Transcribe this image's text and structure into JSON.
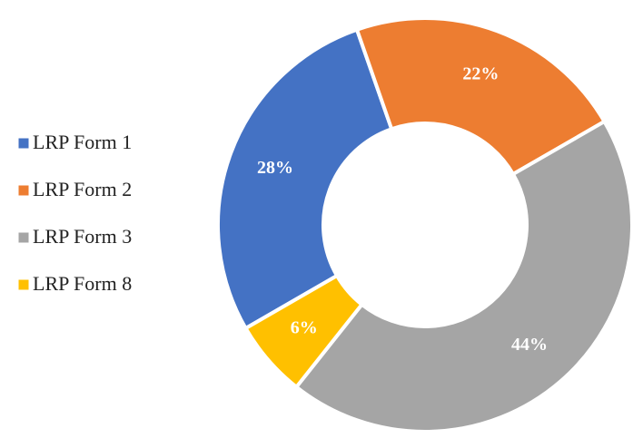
{
  "chart_data": {
    "type": "donut",
    "categories": [
      "LRP Form 1",
      "LRP Form 2",
      "LRP Form 3",
      "LRP Form 8"
    ],
    "values": [
      28,
      22,
      44,
      6
    ],
    "value_labels": [
      "28%",
      "22%",
      "44%",
      "6%"
    ],
    "colors": [
      "#4472c4",
      "#ed7d31",
      "#a5a5a5",
      "#ffc000"
    ],
    "legend": "left"
  }
}
